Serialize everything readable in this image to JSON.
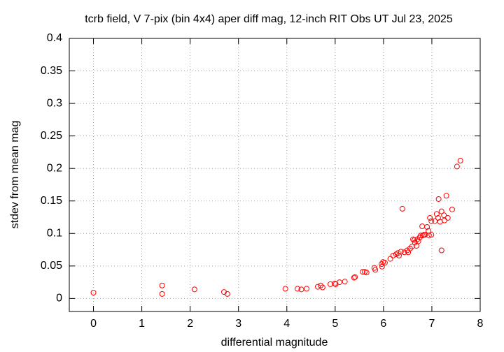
{
  "chart_data": {
    "type": "scatter",
    "title": "tcrb field, V 7-pix (bin 4x4) aper diff mag,  12-inch RIT Obs UT Jul 23, 2025",
    "xlabel": "differential magnitude",
    "ylabel": "stdev from mean mag",
    "color": "#ff0000",
    "grid": true,
    "xlim": [
      -0.5,
      8
    ],
    "xticks": [
      0,
      1,
      2,
      3,
      4,
      5,
      6,
      7,
      8
    ],
    "ylim": [
      -0.02,
      0.4
    ],
    "yticks": [
      0,
      0.05,
      0.1,
      0.15,
      0.2,
      0.25,
      0.3,
      0.35,
      0.4
    ],
    "x": [
      0,
      1.42,
      1.42,
      2.09,
      2.7,
      2.77,
      3.97,
      4.22,
      4.3,
      4.41,
      4.64,
      4.7,
      4.74,
      4.9,
      4.99,
      5.01,
      5.09,
      5.2,
      5.39,
      5.41,
      5.57,
      5.61,
      5.65,
      5.81,
      5.83,
      5.96,
      5.99,
      5.97,
      6.03,
      6.14,
      6.2,
      6.26,
      6.3,
      6.32,
      6.36,
      6.39,
      6.43,
      6.49,
      6.51,
      6.55,
      6.59,
      6.61,
      6.64,
      6.65,
      6.68,
      6.7,
      6.72,
      6.75,
      6.77,
      6.81,
      6.84,
      6.8,
      6.86,
      6.9,
      6.93,
      6.94,
      6.96,
      6.99,
      6.99,
      7.06,
      7.1,
      7.13,
      7.14,
      7.17,
      7.2,
      7.2,
      7.25,
      7.26,
      7.3,
      7.33,
      7.42,
      7.52,
      7.59
    ],
    "values": [
      0.009,
      0.02,
      0.007,
      0.014,
      0.01,
      0.007,
      0.015,
      0.015,
      0.014,
      0.015,
      0.018,
      0.02,
      0.017,
      0.022,
      0.023,
      0.022,
      0.025,
      0.026,
      0.032,
      0.033,
      0.041,
      0.041,
      0.04,
      0.047,
      0.044,
      0.053,
      0.056,
      0.049,
      0.055,
      0.061,
      0.066,
      0.068,
      0.07,
      0.066,
      0.072,
      0.138,
      0.071,
      0.074,
      0.071,
      0.077,
      0.08,
      0.091,
      0.09,
      0.086,
      0.081,
      0.091,
      0.088,
      0.094,
      0.097,
      0.097,
      0.098,
      0.111,
      0.098,
      0.11,
      0.104,
      0.097,
      0.124,
      0.098,
      0.119,
      0.119,
      0.13,
      0.124,
      0.153,
      0.118,
      0.134,
      0.074,
      0.128,
      0.12,
      0.158,
      0.124,
      0.137,
      0.203,
      0.212
    ]
  }
}
